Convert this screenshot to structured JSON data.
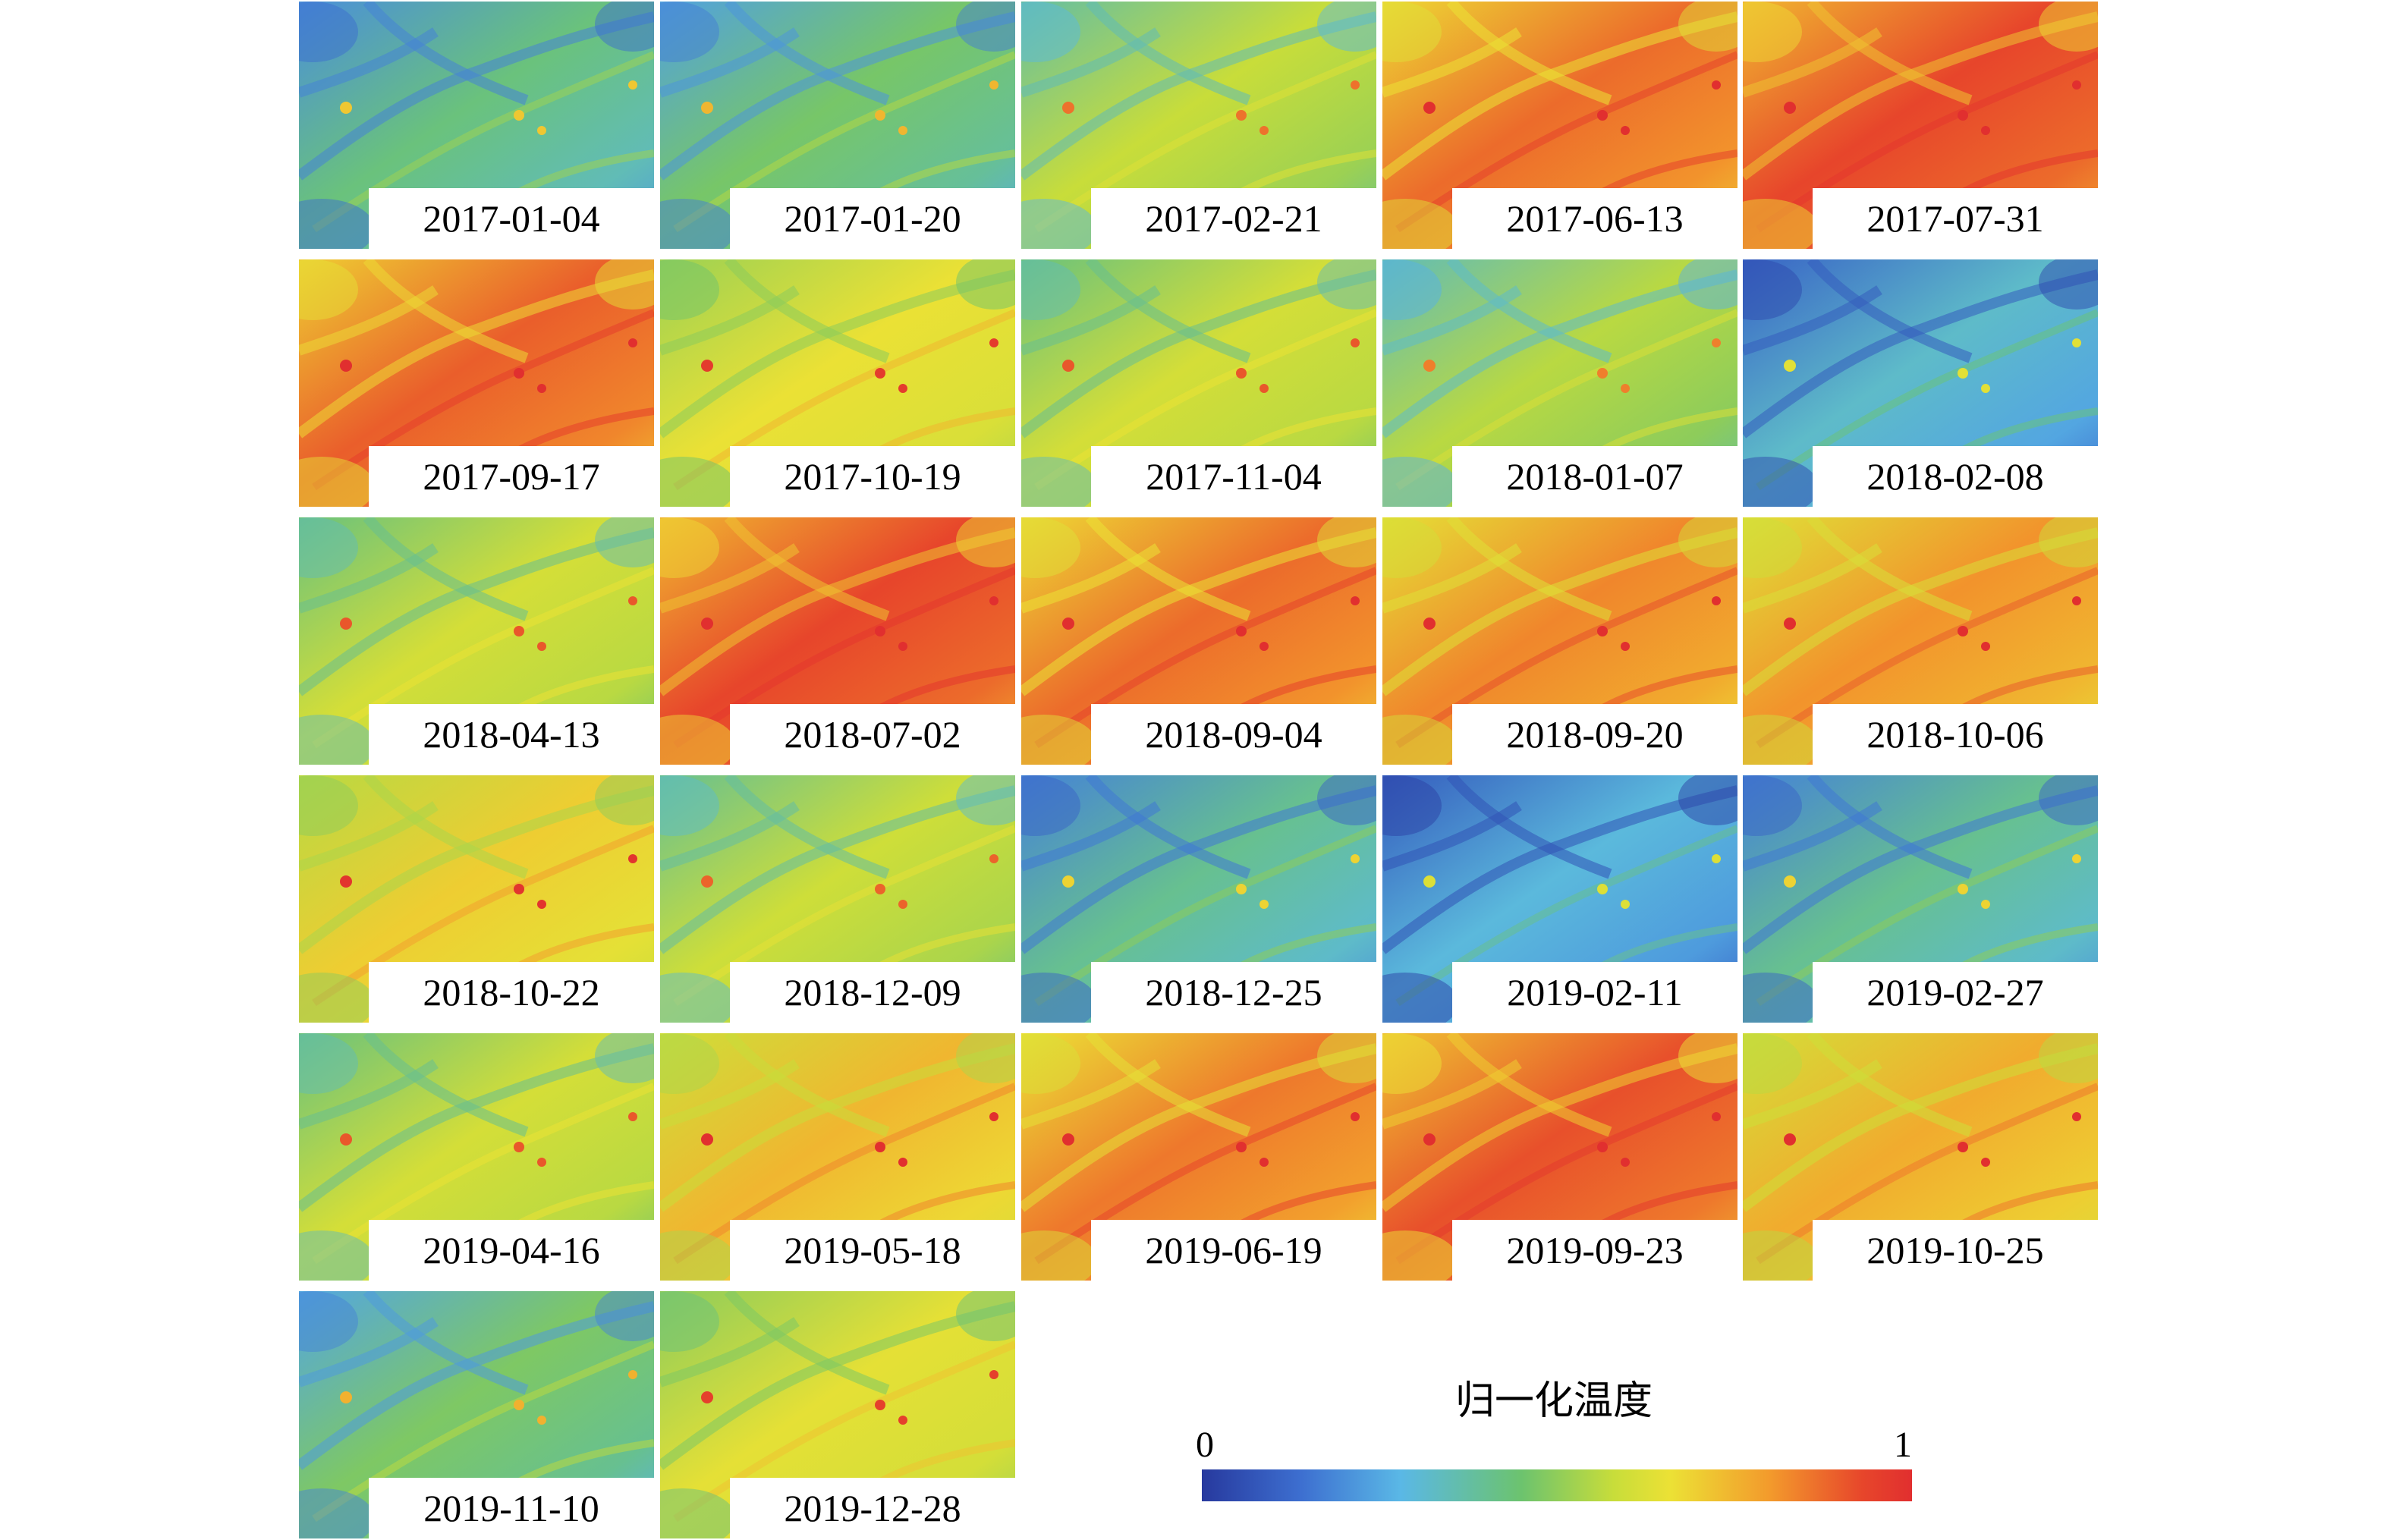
{
  "tiles": [
    {
      "date": "2017-01-04",
      "level": 0.32
    },
    {
      "date": "2017-01-20",
      "level": 0.35
    },
    {
      "date": "2017-02-21",
      "level": 0.46
    },
    {
      "date": "2017-06-13",
      "level": 0.78
    },
    {
      "date": "2017-07-31",
      "level": 0.84
    },
    {
      "date": "2017-09-17",
      "level": 0.8
    },
    {
      "date": "2017-10-19",
      "level": 0.58
    },
    {
      "date": "2017-11-04",
      "level": 0.5
    },
    {
      "date": "2018-01-07",
      "level": 0.44
    },
    {
      "date": "2018-02-08",
      "level": 0.24
    },
    {
      "date": "2018-04-13",
      "level": 0.5
    },
    {
      "date": "2018-07-02",
      "level": 0.84
    },
    {
      "date": "2018-09-04",
      "level": 0.78
    },
    {
      "date": "2018-09-20",
      "level": 0.74
    },
    {
      "date": "2018-10-06",
      "level": 0.72
    },
    {
      "date": "2018-10-22",
      "level": 0.62
    },
    {
      "date": "2018-12-09",
      "level": 0.48
    },
    {
      "date": "2018-12-25",
      "level": 0.3
    },
    {
      "date": "2019-02-11",
      "level": 0.22
    },
    {
      "date": "2019-02-27",
      "level": 0.3
    },
    {
      "date": "2019-04-16",
      "level": 0.5
    },
    {
      "date": "2019-05-18",
      "level": 0.66
    },
    {
      "date": "2019-06-19",
      "level": 0.76
    },
    {
      "date": "2019-09-23",
      "level": 0.82
    },
    {
      "date": "2019-10-25",
      "level": 0.68
    },
    {
      "date": "2019-11-10",
      "level": 0.36
    },
    {
      "date": "2019-12-28",
      "level": 0.56
    }
  ],
  "legend": {
    "title": "归一化温度",
    "min_label": "0",
    "max_label": "1",
    "colormap": [
      "#27399e",
      "#3d6fd0",
      "#5ab8e6",
      "#6cc36e",
      "#c8dd3a",
      "#ece135",
      "#f39a2c",
      "#e7462b",
      "#e12f2f"
    ]
  }
}
